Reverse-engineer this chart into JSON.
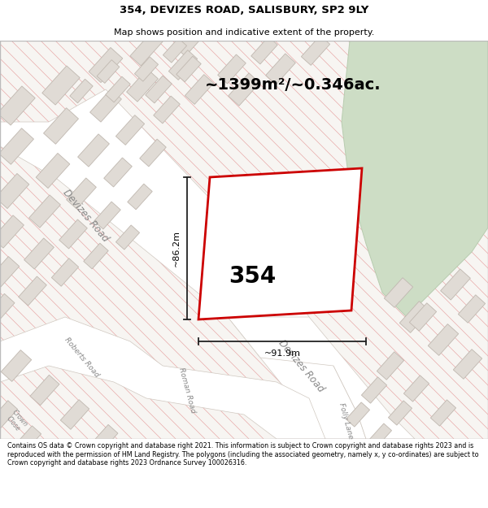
{
  "title_line1": "354, DEVIZES ROAD, SALISBURY, SP2 9LY",
  "title_line2": "Map shows position and indicative extent of the property.",
  "area_text": "~1399m²/~0.346ac.",
  "label_354": "354",
  "dim_horizontal": "~91.9m",
  "dim_vertical": "~86.2m",
  "footer_text": "Contains OS data © Crown copyright and database right 2021. This information is subject to Crown copyright and database rights 2023 and is reproduced with the permission of HM Land Registry. The polygons (including the associated geometry, namely x, y co-ordinates) are subject to Crown copyright and database rights 2023 Ordnance Survey 100026316.",
  "map_bg": "#f7f5f2",
  "hatch_line_color": "#e8aaaa",
  "building_color": "#e0dbd5",
  "building_edge": "#c8bfb8",
  "plot_edge": "#cc0000",
  "green_color": "#cdddc5",
  "green_edge": "#b8ccb0",
  "road_color": "#ffffff",
  "road_edge": "#d0c8c0",
  "dim_color": "#222222",
  "label_color": "#888888",
  "title_fontsize": 9.5,
  "subtitle_fontsize": 8.0,
  "footer_fontsize": 5.8,
  "area_fontsize": 14,
  "label_354_fontsize": 20,
  "dim_fontsize": 8
}
